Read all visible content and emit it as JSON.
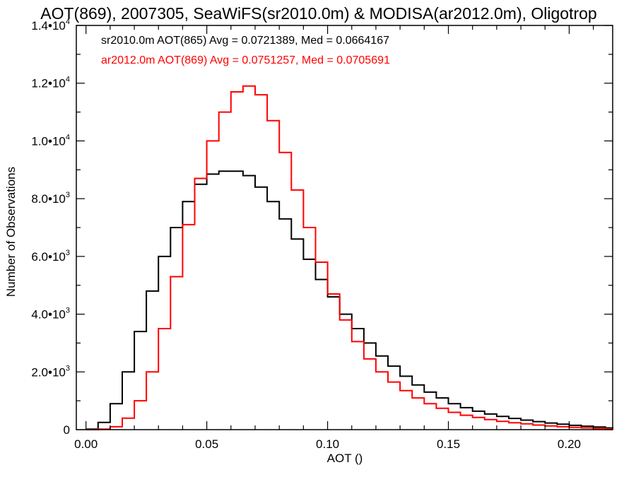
{
  "chart_data": {
    "type": "line",
    "style": "step-histogram",
    "title": "AOT(869), 2007305, SeaWiFS(sr2010.0m) & MODISA(ar2012.0m), Oligotrop",
    "xlabel": "AOT ()",
    "ylabel": "Number of Observations",
    "xlim": [
      -0.004,
      0.218
    ],
    "ylim": [
      0,
      14000
    ],
    "x_ticks": [
      0.0,
      0.05,
      0.1,
      0.15,
      0.2
    ],
    "x_tick_labels": [
      "0.00",
      "0.05",
      "0.10",
      "0.15",
      "0.20"
    ],
    "y_ticks": [
      0,
      2000,
      4000,
      6000,
      8000,
      10000,
      12000,
      14000
    ],
    "y_tick_labels": [
      {
        "mant": "0",
        "exp": ""
      },
      {
        "mant": "2.0•10",
        "exp": "3"
      },
      {
        "mant": "4.0•10",
        "exp": "3"
      },
      {
        "mant": "6.0•10",
        "exp": "3"
      },
      {
        "mant": "8.0•10",
        "exp": "3"
      },
      {
        "mant": "1.0•10",
        "exp": "4"
      },
      {
        "mant": "1.2•10",
        "exp": "4"
      },
      {
        "mant": "1.4•10",
        "exp": "4"
      }
    ],
    "grid": false,
    "legend_position": "top-left",
    "series": [
      {
        "name": "sr2010.0m AOT(865)",
        "label": "sr2010.0m AOT(865) Avg = 0.0721389, Med = 0.0664167",
        "color": "#000000",
        "x": [
          0.0,
          0.005,
          0.01,
          0.015,
          0.02,
          0.025,
          0.03,
          0.035,
          0.04,
          0.045,
          0.05,
          0.055,
          0.06,
          0.065,
          0.07,
          0.075,
          0.08,
          0.085,
          0.09,
          0.095,
          0.1,
          0.105,
          0.11,
          0.115,
          0.12,
          0.125,
          0.13,
          0.135,
          0.14,
          0.145,
          0.15,
          0.155,
          0.16,
          0.165,
          0.17,
          0.175,
          0.18,
          0.185,
          0.19,
          0.195,
          0.2,
          0.205,
          0.21,
          0.215,
          0.218
        ],
        "y": [
          20,
          250,
          900,
          2000,
          3400,
          4800,
          6000,
          7000,
          7900,
          8500,
          8850,
          8950,
          8950,
          8800,
          8400,
          7900,
          7300,
          6600,
          5900,
          5200,
          4600,
          4000,
          3500,
          3000,
          2550,
          2200,
          1850,
          1550,
          1300,
          1100,
          900,
          760,
          640,
          540,
          460,
          390,
          330,
          280,
          230,
          190,
          150,
          120,
          90,
          60,
          40
        ]
      },
      {
        "name": "ar2012.0m AOT(869)",
        "label": "ar2012.0m AOT(869) Avg = 0.0751257, Med = 0.0705691",
        "color": "#ff0000",
        "x": [
          0.0,
          0.005,
          0.01,
          0.015,
          0.02,
          0.025,
          0.03,
          0.035,
          0.04,
          0.045,
          0.05,
          0.055,
          0.06,
          0.065,
          0.07,
          0.075,
          0.08,
          0.085,
          0.09,
          0.095,
          0.1,
          0.105,
          0.11,
          0.115,
          0.12,
          0.125,
          0.13,
          0.135,
          0.14,
          0.145,
          0.15,
          0.155,
          0.16,
          0.165,
          0.17,
          0.175,
          0.18,
          0.185,
          0.19,
          0.195,
          0.2,
          0.205,
          0.21,
          0.215,
          0.218
        ],
        "y": [
          0,
          20,
          100,
          400,
          1000,
          2000,
          3500,
          5300,
          7100,
          8700,
          10000,
          11000,
          11700,
          11900,
          11600,
          10700,
          9600,
          8300,
          7000,
          5800,
          4700,
          3800,
          3050,
          2450,
          2000,
          1650,
          1350,
          1100,
          900,
          740,
          600,
          500,
          420,
          350,
          290,
          240,
          200,
          160,
          130,
          100,
          80,
          60,
          45,
          30,
          20
        ]
      }
    ]
  }
}
